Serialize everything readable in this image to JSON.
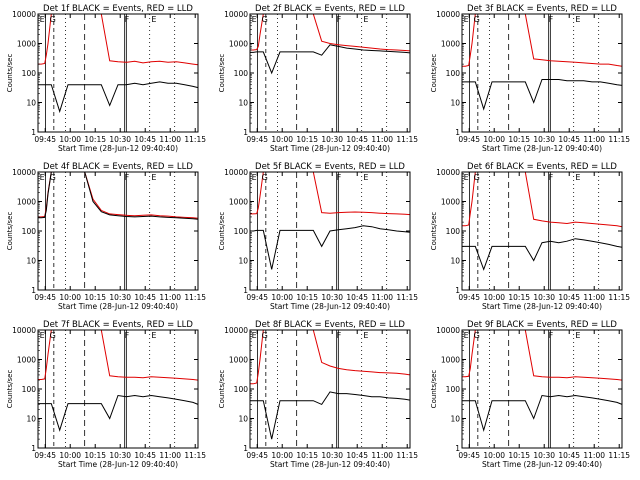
{
  "figure": {
    "x_tick_labels": [
      "09:45",
      "10:00",
      "10:15",
      "10:30",
      "10:45",
      "11:00",
      "11:15"
    ],
    "y_tick_labels": [
      "1",
      "10",
      "100",
      "1000",
      "10000"
    ],
    "x_label": "Start Time (28-Jun-12 09:40:40)",
    "y_label": "Counts/sec"
  },
  "colors": {
    "events": "#000000",
    "lld": "#e00000",
    "axes": "#000000"
  },
  "chart_data": [
    {
      "type": "line",
      "title": "Det 1f BLACK = Events, RED = LLD",
      "x_minutes_from_0940_40": [
        0,
        2,
        4,
        5,
        6,
        8,
        13,
        18,
        23,
        28,
        33,
        38,
        43,
        48,
        53,
        58,
        63,
        68,
        73,
        78,
        83,
        88,
        93,
        96
      ],
      "series": [
        {
          "color": "red",
          "values": [
            200,
            200,
            210,
            400,
            1000,
            10000,
            10000,
            10000,
            10000,
            10000,
            10000,
            10000,
            260,
            240,
            230,
            250,
            220,
            240,
            250,
            230,
            240,
            220,
            200,
            190
          ]
        },
        {
          "color": "black",
          "values": [
            40,
            40,
            40,
            40,
            40,
            40,
            5,
            40,
            40,
            40,
            40,
            40,
            8,
            40,
            40,
            45,
            40,
            45,
            50,
            45,
            45,
            40,
            35,
            32
          ]
        }
      ],
      "markers": [
        "E",
        "G",
        "F",
        "E"
      ],
      "ylim": [
        1,
        10000
      ],
      "log_y": true
    },
    {
      "type": "line",
      "title": "Det 2f BLACK = Events, RED = LLD",
      "x_minutes_from_0940_40": [
        0,
        2,
        4,
        5,
        6,
        8,
        13,
        18,
        23,
        28,
        33,
        38,
        43,
        48,
        53,
        58,
        63,
        68,
        73,
        78,
        83,
        88,
        93,
        96
      ],
      "series": [
        {
          "color": "red",
          "values": [
            600,
            600,
            620,
            800,
            2000,
            10000,
            10000,
            10000,
            10000,
            10000,
            10000,
            10000,
            1200,
            1000,
            900,
            850,
            800,
            750,
            700,
            650,
            620,
            600,
            580,
            560
          ]
        },
        {
          "color": "black",
          "values": [
            500,
            500,
            520,
            520,
            520,
            520,
            100,
            520,
            520,
            520,
            520,
            520,
            400,
            900,
            800,
            700,
            650,
            600,
            580,
            560,
            540,
            520,
            500,
            480
          ]
        }
      ],
      "markers": [
        "E",
        "G",
        "F",
        "E"
      ],
      "ylim": [
        1,
        10000
      ],
      "log_y": true
    },
    {
      "type": "line",
      "title": "Det 3f BLACK = Events, RED = LLD",
      "x_minutes_from_0940_40": [
        0,
        2,
        4,
        5,
        6,
        8,
        13,
        18,
        23,
        28,
        33,
        38,
        43,
        48,
        53,
        58,
        63,
        68,
        73,
        78,
        83,
        88,
        93,
        96
      ],
      "series": [
        {
          "color": "red",
          "values": [
            170,
            170,
            180,
            400,
            1000,
            10000,
            10000,
            10000,
            10000,
            10000,
            10000,
            10000,
            300,
            280,
            260,
            250,
            240,
            230,
            220,
            210,
            200,
            200,
            180,
            170
          ]
        },
        {
          "color": "black",
          "values": [
            50,
            50,
            50,
            50,
            50,
            50,
            6,
            50,
            50,
            50,
            50,
            50,
            10,
            60,
            60,
            60,
            55,
            55,
            55,
            50,
            50,
            45,
            40,
            38
          ]
        }
      ],
      "markers": [
        "E",
        "G",
        "F",
        "E"
      ],
      "ylim": [
        1,
        10000
      ],
      "log_y": true
    },
    {
      "type": "line",
      "title": "Det 4f BLACK = Events, RED = LLD",
      "x_minutes_from_0940_40": [
        0,
        2,
        4,
        5,
        6,
        8,
        13,
        18,
        23,
        28,
        33,
        38,
        43,
        48,
        53,
        58,
        63,
        68,
        73,
        78,
        83,
        88,
        93,
        96
      ],
      "series": [
        {
          "color": "red",
          "values": [
            300,
            300,
            310,
            600,
            2000,
            10000,
            10000,
            10000,
            10000,
            10000,
            1200,
            500,
            380,
            360,
            340,
            330,
            340,
            350,
            330,
            320,
            300,
            290,
            280,
            270
          ]
        },
        {
          "color": "black",
          "values": [
            280,
            280,
            290,
            500,
            1800,
            10000,
            10000,
            10000,
            10000,
            10000,
            1000,
            450,
            350,
            330,
            310,
            300,
            310,
            320,
            300,
            290,
            280,
            270,
            260,
            250
          ]
        }
      ],
      "markers": [
        "E",
        "G",
        "F",
        "E"
      ],
      "ylim": [
        1,
        10000
      ],
      "log_y": true
    },
    {
      "type": "line",
      "title": "Det 5f BLACK = Events, RED = LLD",
      "x_minutes_from_0940_40": [
        0,
        2,
        4,
        5,
        6,
        8,
        13,
        18,
        23,
        28,
        33,
        38,
        43,
        48,
        53,
        58,
        63,
        68,
        73,
        78,
        83,
        88,
        93,
        96
      ],
      "series": [
        {
          "color": "red",
          "values": [
            380,
            380,
            390,
            600,
            1500,
            10000,
            10000,
            10000,
            10000,
            10000,
            10000,
            10000,
            420,
            400,
            420,
            430,
            440,
            430,
            420,
            400,
            390,
            380,
            370,
            360
          ]
        },
        {
          "color": "black",
          "values": [
            100,
            100,
            105,
            105,
            105,
            105,
            5,
            105,
            105,
            105,
            105,
            105,
            30,
            100,
            110,
            120,
            130,
            150,
            140,
            120,
            110,
            100,
            95,
            90
          ]
        }
      ],
      "markers": [
        "E",
        "G",
        "F",
        "E"
      ],
      "ylim": [
        1,
        10000
      ],
      "log_y": true
    },
    {
      "type": "line",
      "title": "Det 6f BLACK = Events, RED = LLD",
      "x_minutes_from_0940_40": [
        0,
        2,
        4,
        5,
        6,
        8,
        13,
        18,
        23,
        28,
        33,
        38,
        43,
        48,
        53,
        58,
        63,
        68,
        73,
        78,
        83,
        88,
        93,
        96
      ],
      "series": [
        {
          "color": "red",
          "values": [
            150,
            150,
            160,
            400,
            1000,
            10000,
            10000,
            10000,
            10000,
            10000,
            10000,
            10000,
            250,
            220,
            200,
            190,
            180,
            200,
            190,
            180,
            170,
            160,
            150,
            140
          ]
        },
        {
          "color": "black",
          "values": [
            30,
            30,
            30,
            30,
            30,
            30,
            5,
            30,
            30,
            30,
            30,
            30,
            10,
            40,
            45,
            40,
            45,
            55,
            50,
            45,
            40,
            35,
            30,
            28
          ]
        }
      ],
      "markers": [
        "E",
        "G",
        "F",
        "E"
      ],
      "ylim": [
        1,
        10000
      ],
      "log_y": true
    },
    {
      "type": "line",
      "title": "Det 7f BLACK = Events, RED = LLD",
      "x_minutes_from_0940_40": [
        0,
        2,
        4,
        5,
        6,
        8,
        13,
        18,
        23,
        28,
        33,
        38,
        43,
        48,
        53,
        58,
        63,
        68,
        73,
        78,
        83,
        88,
        93,
        96
      ],
      "series": [
        {
          "color": "red",
          "values": [
            210,
            210,
            220,
            500,
            1500,
            10000,
            10000,
            10000,
            10000,
            10000,
            10000,
            10000,
            280,
            260,
            250,
            250,
            240,
            260,
            250,
            240,
            230,
            220,
            210,
            200
          ]
        },
        {
          "color": "black",
          "values": [
            32,
            32,
            32,
            32,
            32,
            32,
            4,
            32,
            32,
            32,
            32,
            32,
            10,
            60,
            55,
            60,
            55,
            60,
            55,
            50,
            45,
            40,
            35,
            30
          ]
        }
      ],
      "markers": [
        "E",
        "G",
        "F",
        "E"
      ],
      "ylim": [
        1,
        10000
      ],
      "log_y": true
    },
    {
      "type": "line",
      "title": "Det 8f BLACK = Events, RED = LLD",
      "x_minutes_from_0940_40": [
        0,
        2,
        4,
        5,
        6,
        8,
        13,
        18,
        23,
        28,
        33,
        38,
        43,
        48,
        53,
        58,
        63,
        68,
        73,
        78,
        83,
        88,
        93,
        96
      ],
      "series": [
        {
          "color": "red",
          "values": [
            150,
            150,
            160,
            350,
            1000,
            10000,
            10000,
            10000,
            10000,
            10000,
            10000,
            10000,
            800,
            600,
            500,
            450,
            420,
            400,
            380,
            360,
            350,
            340,
            320,
            300
          ]
        },
        {
          "color": "black",
          "values": [
            40,
            40,
            40,
            40,
            40,
            40,
            2,
            40,
            40,
            40,
            40,
            40,
            30,
            80,
            70,
            70,
            65,
            60,
            55,
            55,
            50,
            48,
            45,
            42
          ]
        }
      ],
      "markers": [
        "E",
        "G",
        "F",
        "E"
      ],
      "ylim": [
        1,
        10000
      ],
      "log_y": true
    },
    {
      "type": "line",
      "title": "Det 9f BLACK = Events, RED = LLD",
      "x_minutes_from_0940_40": [
        0,
        2,
        4,
        5,
        6,
        8,
        13,
        18,
        23,
        28,
        33,
        38,
        43,
        48,
        53,
        58,
        63,
        68,
        73,
        78,
        83,
        88,
        93,
        96
      ],
      "series": [
        {
          "color": "red",
          "values": [
            260,
            260,
            270,
            500,
            1500,
            10000,
            10000,
            10000,
            10000,
            10000,
            10000,
            10000,
            280,
            260,
            250,
            250,
            240,
            260,
            250,
            240,
            230,
            220,
            210,
            200
          ]
        },
        {
          "color": "black",
          "values": [
            40,
            40,
            40,
            40,
            40,
            40,
            4,
            40,
            40,
            40,
            40,
            40,
            10,
            60,
            55,
            60,
            55,
            60,
            55,
            50,
            45,
            40,
            35,
            30
          ]
        }
      ],
      "markers": [
        "E",
        "G",
        "F",
        "E"
      ],
      "ylim": [
        1,
        10000
      ],
      "log_y": true
    }
  ]
}
